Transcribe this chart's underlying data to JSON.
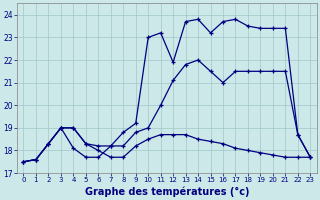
{
  "xlabel": "Graphe des températures (°c)",
  "bg_color": "#cce8e8",
  "line_color": "#000080",
  "grid_color": "#a0c8c8",
  "xlim": [
    -0.5,
    23.5
  ],
  "ylim": [
    17,
    24.5
  ],
  "yticks": [
    17,
    18,
    19,
    20,
    21,
    22,
    23,
    24
  ],
  "xticks": [
    0,
    1,
    2,
    3,
    4,
    5,
    6,
    7,
    8,
    9,
    10,
    11,
    12,
    13,
    14,
    15,
    16,
    17,
    18,
    19,
    20,
    21,
    22,
    23
  ],
  "line1_x": [
    0,
    1,
    2,
    3,
    4,
    5,
    6,
    7,
    8,
    9,
    10,
    11,
    12,
    13,
    14,
    15,
    16,
    17,
    18,
    19,
    20,
    21,
    22,
    23
  ],
  "line1_y": [
    17.5,
    17.6,
    18.3,
    19.0,
    19.0,
    18.3,
    18.2,
    18.2,
    18.8,
    19.2,
    23.0,
    23.2,
    21.9,
    23.7,
    23.8,
    23.2,
    23.7,
    23.8,
    23.5,
    23.4,
    23.4,
    23.4,
    18.7,
    17.7
  ],
  "line2_x": [
    0,
    1,
    2,
    3,
    4,
    5,
    6,
    7,
    8,
    9,
    10,
    11,
    12,
    13,
    14,
    15,
    16,
    17,
    18,
    19,
    20,
    21,
    22,
    23
  ],
  "line2_y": [
    17.5,
    17.6,
    18.3,
    19.0,
    18.1,
    17.7,
    17.7,
    18.2,
    18.2,
    18.8,
    19.0,
    20.0,
    21.1,
    21.8,
    22.0,
    21.5,
    21.0,
    21.5,
    21.5,
    21.5,
    21.5,
    21.5,
    18.7,
    17.7
  ],
  "line3_x": [
    0,
    1,
    2,
    3,
    4,
    5,
    6,
    7,
    8,
    9,
    10,
    11,
    12,
    13,
    14,
    15,
    16,
    17,
    18,
    19,
    20,
    21,
    22,
    23
  ],
  "line3_y": [
    17.5,
    17.6,
    18.3,
    19.0,
    19.0,
    18.3,
    18.0,
    17.7,
    17.7,
    18.2,
    18.5,
    18.7,
    18.7,
    18.7,
    18.5,
    18.4,
    18.3,
    18.1,
    18.0,
    17.9,
    17.8,
    17.7,
    17.7,
    17.7
  ]
}
